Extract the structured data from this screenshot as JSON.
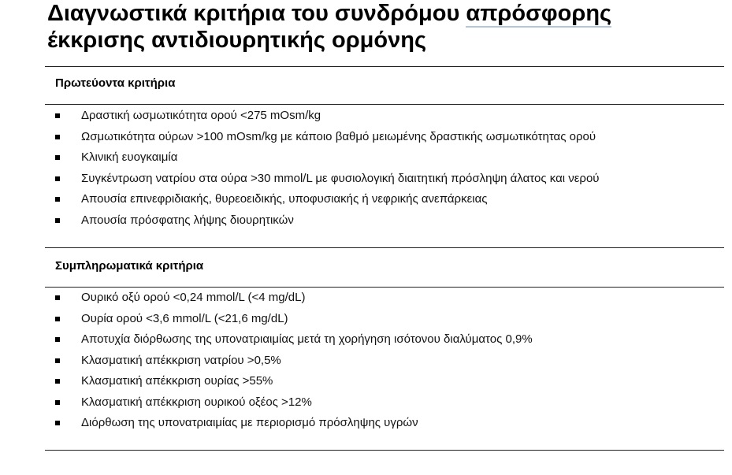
{
  "title": {
    "line1_prefix": "Διαγνωστικά κριτήρια του συνδρόμου ",
    "line1_underlined": "απρόσφορης",
    "line2": "έκκρισης αντιδιουρητικής ορμόνης"
  },
  "primary": {
    "heading": "Πρωτεύοντα κριτήρια",
    "items": [
      "Δραστική ωσμωτικότητα ορού <275 mOsm/kg",
      "Ωσμωτικότητα ούρων >100 mOsm/kg με κάποιο βαθμό μειωμένης δραστικής ωσμωτικότητας ορού",
      "Κλινική ευογκαιμία",
      "Συγκέντρωση νατρίου στα ούρα >30 mmol/L με φυσιολογική διαιτητική πρόσληψη άλατος και νερού",
      "Απουσία επινεφριδιακής, θυρεοειδικής, υποφυσιακής ή νεφρικής ανεπάρκειας",
      "Απουσία πρόσφατης λήψης διουρητικών"
    ]
  },
  "supplementary": {
    "heading": "Συμπληρωματικά κριτήρια",
    "items": [
      "Ουρικό οξύ ορού <0,24 mmol/L (<4 mg/dL)",
      "Ουρία ορού <3,6 mmol/L (<21,6 mg/dL)",
      "Αποτυχία διόρθωσης της υπονατριαιμίας μετά τη χορήγηση ισότονου διαλύματος 0,9%",
      "Κλασματική απέκκριση νατρίου >0,5%",
      "Κλασματική απέκκριση ουρίας >55%",
      "Κλασματική απέκκριση ουρικού οξέος >12%",
      "Διόρθωση της υπονατριαιμίας με περιορισμό πρόσληψης υγρών"
    ]
  }
}
